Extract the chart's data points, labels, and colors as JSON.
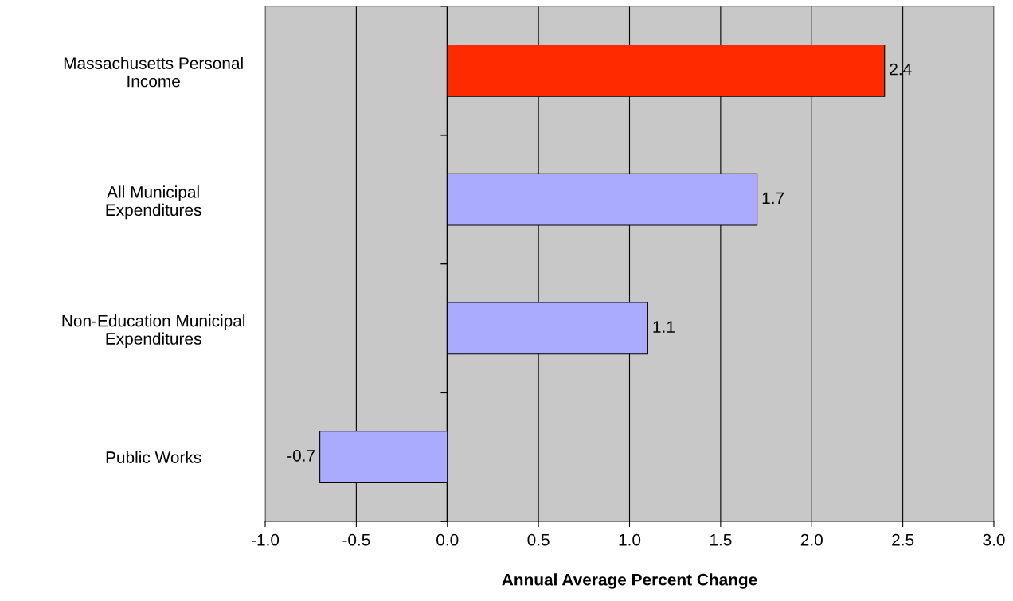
{
  "chart_data": {
    "type": "bar",
    "orientation": "horizontal",
    "xlabel": "Annual Average Percent Change",
    "categories": [
      "Massachusetts Personal\nIncome",
      "All Municipal\nExpenditures",
      "Non-Education Municipal\nExpenditures",
      "Public Works"
    ],
    "values": [
      2.4,
      1.7,
      1.1,
      -0.7
    ],
    "colors": [
      "#ff2a00",
      "#aaaaff",
      "#aaaaff",
      "#aaaaff"
    ],
    "xlim": [
      -1.0,
      3.0
    ],
    "xticks": [
      {
        "value": -1.0,
        "label": "-1.0"
      },
      {
        "value": -0.5,
        "label": "-0.5"
      },
      {
        "value": 0.0,
        "label": "0.0"
      },
      {
        "value": 0.5,
        "label": "0.5"
      },
      {
        "value": 1.0,
        "label": "1.0"
      },
      {
        "value": 1.5,
        "label": "1.5"
      },
      {
        "value": 2.0,
        "label": "2.0"
      },
      {
        "value": 2.5,
        "label": "2.5"
      },
      {
        "value": 3.0,
        "label": "3.0"
      }
    ],
    "grid": "x",
    "data_labels": true,
    "legend": false
  }
}
